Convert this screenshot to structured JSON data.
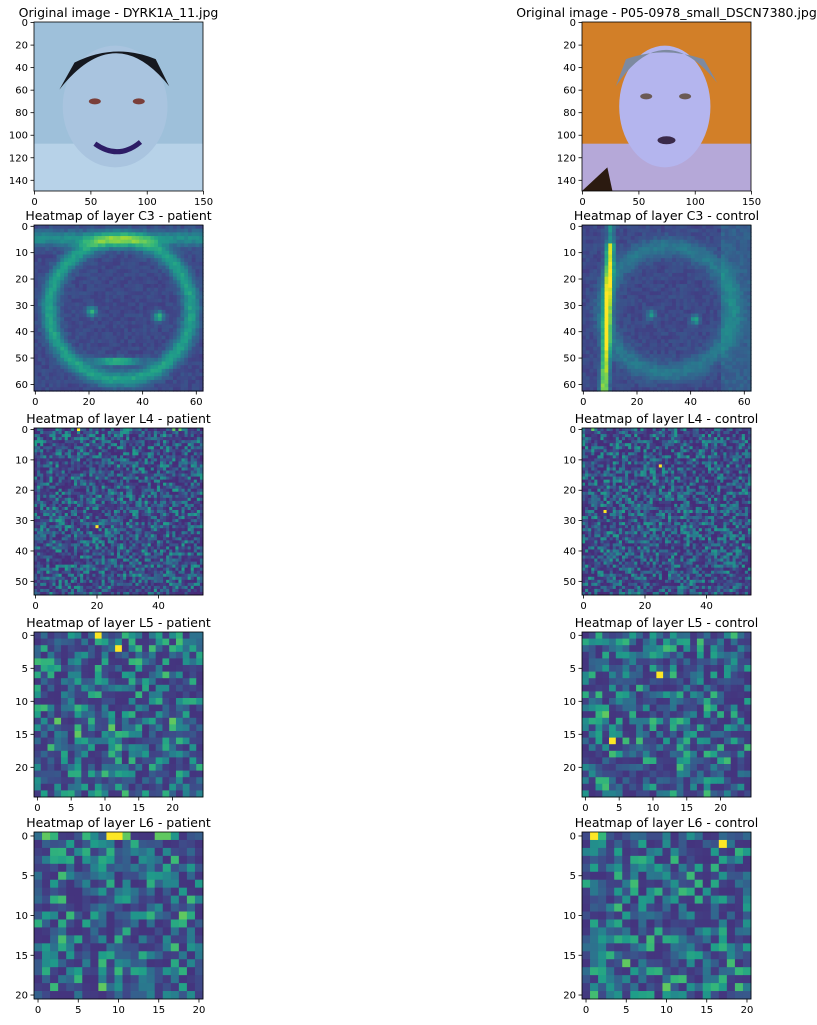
{
  "figure": {
    "panels": [
      {
        "title": "Original image - DYRK1A_11.jpg",
        "kind": "photo",
        "subject": "patient",
        "size": 150,
        "xticks": [
          0,
          50,
          100,
          150
        ],
        "yticks": [
          0,
          20,
          40,
          60,
          80,
          100,
          120,
          140
        ]
      },
      {
        "title": "Original image - P05-0978_small_DSCN7380.jpg",
        "kind": "photo",
        "subject": "control",
        "size": 150,
        "xticks": [
          0,
          50,
          100,
          150
        ],
        "yticks": [
          0,
          20,
          40,
          60,
          80,
          100,
          120,
          140
        ]
      },
      {
        "title": "Heatmap of layer C3 - patient",
        "kind": "smooth",
        "layer": "C3",
        "size": 63,
        "xticks": [
          0,
          20,
          40,
          60
        ],
        "yticks": [
          0,
          10,
          20,
          30,
          40,
          50,
          60
        ]
      },
      {
        "title": "Heatmap of layer C3 - control",
        "kind": "smooth",
        "layer": "C3",
        "size": 63,
        "xticks": [
          0,
          20,
          40,
          60
        ],
        "yticks": [
          0,
          10,
          20,
          30,
          40,
          50,
          60
        ]
      },
      {
        "title": "Heatmap of layer L4 - patient",
        "kind": "grid",
        "layer": "L4",
        "size": 55,
        "xticks": [
          0,
          20,
          40
        ],
        "yticks": [
          0,
          10,
          20,
          30,
          40,
          50
        ]
      },
      {
        "title": "Heatmap of layer L4 - control",
        "kind": "grid",
        "layer": "L4",
        "size": 55,
        "xticks": [
          0,
          20,
          40
        ],
        "yticks": [
          0,
          10,
          20,
          30,
          40,
          50
        ]
      },
      {
        "title": "Heatmap of layer L5 - patient",
        "kind": "grid",
        "layer": "L5",
        "size": 25,
        "xticks": [
          0,
          5,
          10,
          15,
          20
        ],
        "yticks": [
          0,
          5,
          10,
          15,
          20
        ]
      },
      {
        "title": "Heatmap of layer L5 - control",
        "kind": "grid",
        "layer": "L5",
        "size": 25,
        "xticks": [
          0,
          5,
          10,
          15,
          20
        ],
        "yticks": [
          0,
          5,
          10,
          15,
          20
        ]
      },
      {
        "title": "Heatmap of layer L6 - patient",
        "kind": "grid",
        "layer": "L6",
        "size": 21,
        "xticks": [
          0,
          5,
          10,
          15,
          20
        ],
        "yticks": [
          0,
          5,
          10,
          15,
          20
        ]
      },
      {
        "title": "Heatmap of layer L6 - control",
        "kind": "grid",
        "layer": "L6",
        "size": 21,
        "xticks": [
          0,
          5,
          10,
          15,
          20
        ],
        "yticks": [
          0,
          5,
          10,
          15,
          20
        ]
      }
    ]
  },
  "chart_data": [
    {
      "type": "heatmap",
      "title": "Original image - DYRK1A_11.jpg",
      "xlim": [
        0,
        150
      ],
      "ylim": [
        150,
        0
      ],
      "content": "photograph of patient face (blue-tinted)"
    },
    {
      "type": "heatmap",
      "title": "Original image - P05-0978_small_DSCN7380.jpg",
      "xlim": [
        0,
        150
      ],
      "ylim": [
        150,
        0
      ],
      "content": "photograph of control face on orange background"
    },
    {
      "type": "heatmap",
      "title": "Heatmap of layer C3 - patient",
      "xlim": [
        0,
        63
      ],
      "ylim": [
        63,
        0
      ]
    },
    {
      "type": "heatmap",
      "title": "Heatmap of layer C3 - control",
      "xlim": [
        0,
        63
      ],
      "ylim": [
        63,
        0
      ]
    },
    {
      "type": "heatmap",
      "title": "Heatmap of layer L4 - patient",
      "xlim": [
        0,
        55
      ],
      "ylim": [
        55,
        0
      ],
      "hotspots": [
        [
          20,
          32
        ],
        [
          14,
          0
        ],
        [
          45,
          0
        ],
        [
          47,
          0
        ]
      ]
    },
    {
      "type": "heatmap",
      "title": "Heatmap of layer L4 - control",
      "xlim": [
        0,
        55
      ],
      "ylim": [
        55,
        0
      ],
      "hotspots": [
        [
          7,
          27
        ],
        [
          25,
          12
        ],
        [
          3,
          0
        ]
      ]
    },
    {
      "type": "heatmap",
      "title": "Heatmap of layer L5 - patient",
      "xlim": [
        0,
        25
      ],
      "ylim": [
        25,
        0
      ],
      "hotspots": [
        [
          9,
          0
        ],
        [
          12,
          2
        ],
        [
          3,
          13
        ],
        [
          6,
          15
        ],
        [
          20,
          13
        ],
        [
          11,
          14
        ]
      ]
    },
    {
      "type": "heatmap",
      "title": "Heatmap of layer L5 - control",
      "xlim": [
        0,
        25
      ],
      "ylim": [
        25,
        0
      ],
      "hotspots": [
        [
          4,
          16
        ],
        [
          11,
          6
        ],
        [
          3,
          12
        ]
      ]
    },
    {
      "type": "heatmap",
      "title": "Heatmap of layer L6 - patient",
      "xlim": [
        0,
        21
      ],
      "ylim": [
        21,
        0
      ],
      "hotspots": [
        [
          9,
          0
        ],
        [
          10,
          0
        ],
        [
          11,
          0
        ],
        [
          15,
          0
        ],
        [
          16,
          0
        ],
        [
          1,
          0
        ],
        [
          8,
          19
        ],
        [
          18,
          10
        ]
      ]
    },
    {
      "type": "heatmap",
      "title": "Heatmap of layer L6 - control",
      "xlim": [
        0,
        21
      ],
      "ylim": [
        21,
        0
      ],
      "hotspots": [
        [
          1,
          0
        ],
        [
          17,
          1
        ],
        [
          10,
          19
        ],
        [
          5,
          16
        ]
      ]
    }
  ]
}
